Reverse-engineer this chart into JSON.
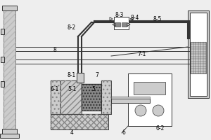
{
  "bg_color": "#eeeeee",
  "line_color": "#333333",
  "gray": "#b8b8b8",
  "dark_gray": "#888888",
  "light_gray": "#cccccc",
  "white": "#ffffff",
  "hatch_gray": "#aaaaaa"
}
